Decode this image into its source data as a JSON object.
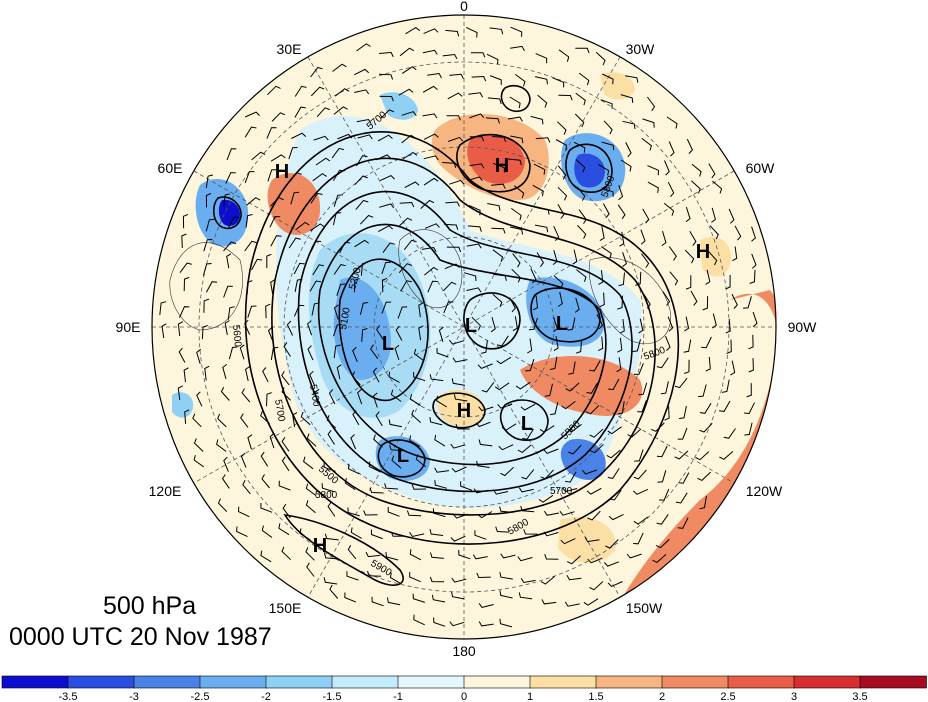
{
  "title": {
    "level": "500 hPa",
    "time": "0000 UTC 20 Nov 1987"
  },
  "longitude_labels": [
    {
      "key": "lon-0",
      "text": "0"
    },
    {
      "key": "lon-30w",
      "text": "30W"
    },
    {
      "key": "lon-60w",
      "text": "60W"
    },
    {
      "key": "lon-90w",
      "text": "90W"
    },
    {
      "key": "lon-120w",
      "text": "120W"
    },
    {
      "key": "lon-150w",
      "text": "150W"
    },
    {
      "key": "lon-180",
      "text": "180"
    },
    {
      "key": "lon-150e",
      "text": "150E"
    },
    {
      "key": "lon-120e",
      "text": "120E"
    },
    {
      "key": "lon-90e",
      "text": "90E"
    },
    {
      "key": "lon-60e",
      "text": "60E"
    },
    {
      "key": "lon-30e",
      "text": "30E"
    }
  ],
  "pressure_centers": [
    "H",
    "H",
    "H",
    "H",
    "H",
    "L",
    "L",
    "L",
    "L",
    "L"
  ],
  "contour_labels": [
    "5700",
    "5800",
    "5200",
    "5100",
    "5400",
    "5500",
    "5700",
    "5800",
    "5900",
    "5800",
    "5700",
    "5600",
    "5500",
    "5800"
  ],
  "colorbar": {
    "ticks": [
      "-3.5",
      "-3",
      "-2.5",
      "-2",
      "-1.5",
      "-1",
      "0",
      "1",
      "1.5",
      "2",
      "2.5",
      "3",
      "3.5"
    ],
    "colors": [
      "#0d0dd0",
      "#2a4fe0",
      "#4a82e8",
      "#6aaef0",
      "#8fd0f5",
      "#c2ecfa",
      "#e6f7fb",
      "#fdf6dc",
      "#fbdfa4",
      "#f7b582",
      "#f08a62",
      "#e85c48",
      "#d82e30",
      "#a80c20"
    ]
  },
  "palette": {
    "cold": "#6aaef0",
    "warm": "#f08a62",
    "contour": "#000000"
  }
}
